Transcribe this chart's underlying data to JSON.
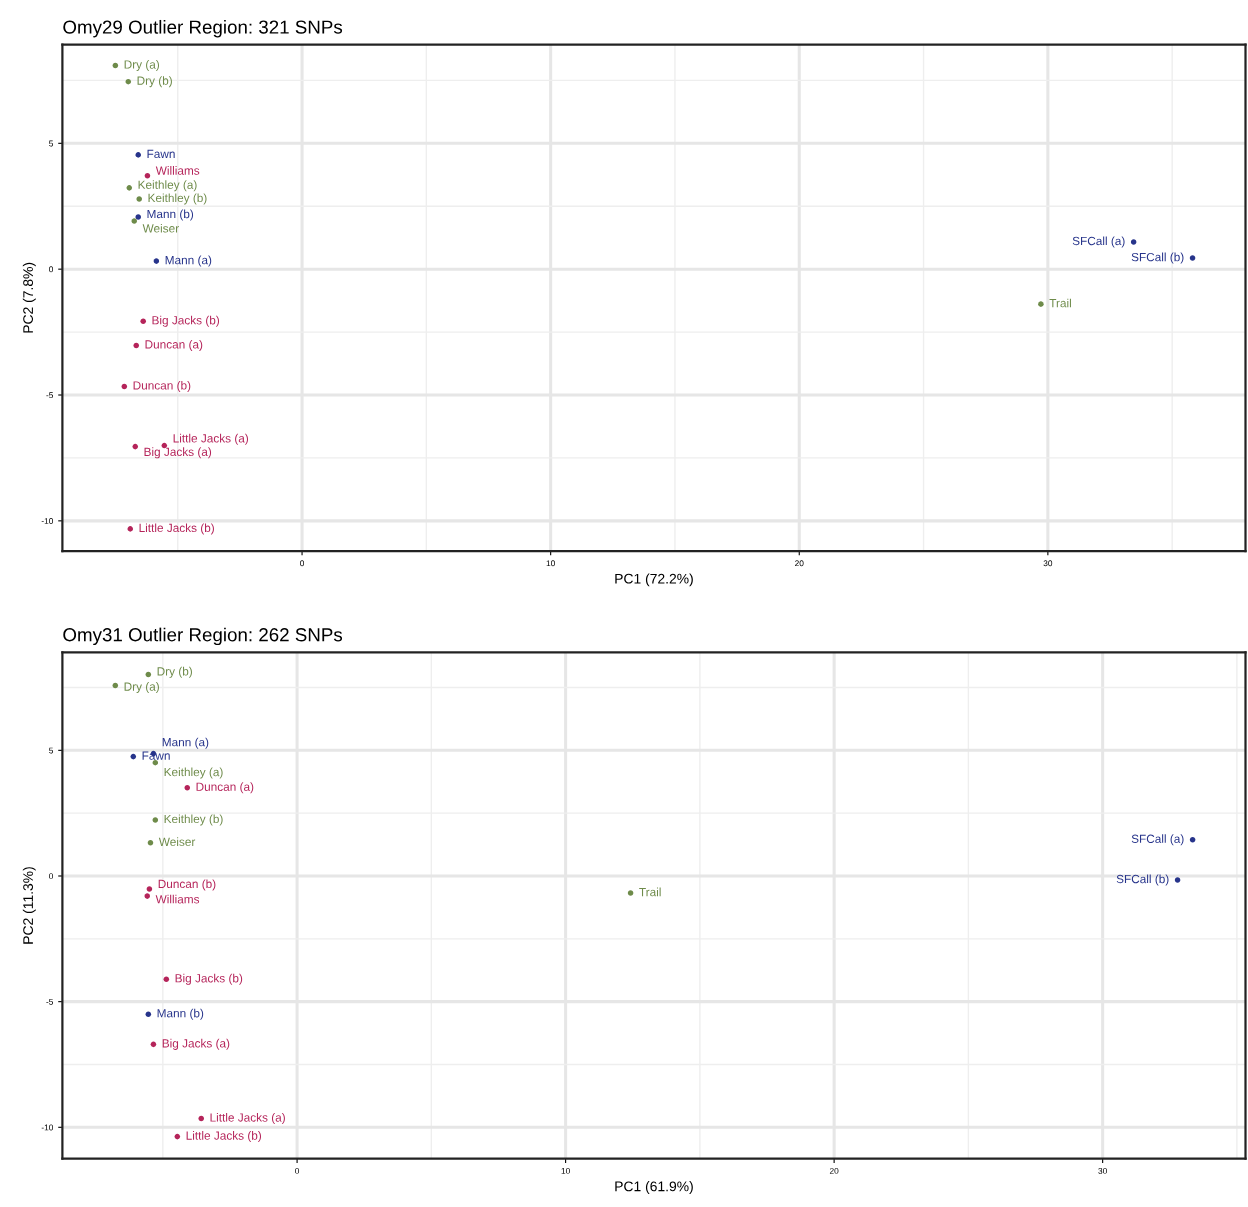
{
  "chart_data": [
    {
      "type": "scatter",
      "title": "Omy29 Outlier Region: 321 SNPs",
      "xlabel": "PC1 (72.2%)",
      "ylabel": "PC2 (7.8%)",
      "x": [
        -7.51,
        -6.99,
        -6.59,
        -6.22,
        -6.95,
        -6.55,
        -6.59,
        -6.75,
        -5.86,
        -6.39,
        -6.67,
        -7.15,
        -5.54,
        -6.71,
        -6.91,
        33.45,
        35.82,
        29.72
      ],
      "values": [
        8.09,
        7.45,
        4.54,
        3.71,
        3.23,
        2.79,
        2.07,
        1.91,
        0.32,
        -2.07,
        -3.03,
        -4.66,
        -7.01,
        -7.05,
        -10.32,
        1.08,
        0.44,
        -1.39
      ],
      "colors": [
        "#6e8b4a",
        "#6e8b4a",
        "#27348b",
        "#b5245a",
        "#6e8b4a",
        "#6e8b4a",
        "#27348b",
        "#6e8b4a",
        "#27348b",
        "#b5245a",
        "#b5245a",
        "#b5245a",
        "#b5245a",
        "#b5245a",
        "#b5245a",
        "#27348b",
        "#27348b",
        "#6e8b4a"
      ],
      "annotations": [
        {
          "text": "Dry (a)",
          "x": -7.51,
          "y": 8.09
        },
        {
          "text": "Dry (b)",
          "x": -6.99,
          "y": 7.45
        },
        {
          "text": "Fawn",
          "x": -6.59,
          "y": 4.54
        },
        {
          "text": "Williams",
          "x": -6.22,
          "y": 3.71
        },
        {
          "text": "Keithley (a)",
          "x": -6.95,
          "y": 3.23
        },
        {
          "text": "Keithley (b)",
          "x": -6.55,
          "y": 2.79
        },
        {
          "text": "Mann (b)",
          "x": -6.59,
          "y": 2.07
        },
        {
          "text": "Weiser",
          "x": -6.75,
          "y": 1.91
        },
        {
          "text": "Mann (a)",
          "x": -5.86,
          "y": 0.32
        },
        {
          "text": "Big Jacks (b)",
          "x": -6.39,
          "y": -2.07
        },
        {
          "text": "Duncan (a)",
          "x": -6.67,
          "y": -3.03
        },
        {
          "text": "Duncan (b)",
          "x": -7.15,
          "y": -4.66
        },
        {
          "text": "Little Jacks (a)",
          "x": -5.54,
          "y": -7.01
        },
        {
          "text": "Big Jacks (a)",
          "x": -6.71,
          "y": -7.05
        },
        {
          "text": "Little Jacks (b)",
          "x": -6.91,
          "y": -10.32
        },
        {
          "text": "SFCall (a)",
          "x": 33.45,
          "y": 1.08
        },
        {
          "text": "SFCall (b)",
          "x": 35.82,
          "y": 0.44
        },
        {
          "text": "Trail",
          "x": 29.72,
          "y": -1.39
        }
      ],
      "xlim": [
        -9.64,
        37.95
      ],
      "ylim": [
        -11.2,
        8.92
      ],
      "xticks": [
        0,
        10,
        20,
        30
      ],
      "yticks": [
        -10,
        -5,
        0,
        5
      ],
      "grid": true,
      "marker": "circle"
    },
    {
      "type": "scatter",
      "title": "Omy31 Outlier Region: 262 SNPs",
      "xlabel": "PC1 (61.9%)",
      "ylabel": "PC2 (11.3%)",
      "x": [
        -5.54,
        -6.77,
        -5.35,
        -6.1,
        -5.28,
        -4.09,
        -5.28,
        -5.46,
        -5.5,
        -5.58,
        12.42,
        33.35,
        32.79,
        -4.87,
        -5.54,
        -5.35,
        -3.57,
        -4.46
      ],
      "values": [
        8.02,
        7.58,
        4.87,
        4.75,
        4.51,
        3.51,
        2.23,
        1.32,
        -0.52,
        -0.8,
        -0.68,
        1.44,
        -0.16,
        -4.11,
        -5.5,
        -6.7,
        -9.65,
        -10.37
      ],
      "colors": [
        "#6e8b4a",
        "#6e8b4a",
        "#27348b",
        "#27348b",
        "#6e8b4a",
        "#b5245a",
        "#6e8b4a",
        "#6e8b4a",
        "#b5245a",
        "#b5245a",
        "#6e8b4a",
        "#27348b",
        "#27348b",
        "#b5245a",
        "#27348b",
        "#b5245a",
        "#b5245a",
        "#b5245a"
      ],
      "annotations": [
        {
          "text": "Dry (b)",
          "x": -5.54,
          "y": 8.02
        },
        {
          "text": "Dry (a)",
          "x": -6.77,
          "y": 7.58
        },
        {
          "text": "Mann (a)",
          "x": -5.35,
          "y": 4.87
        },
        {
          "text": "Fawn",
          "x": -6.1,
          "y": 4.75
        },
        {
          "text": "Keithley (a)",
          "x": -5.28,
          "y": 4.51
        },
        {
          "text": "Duncan (a)",
          "x": -4.09,
          "y": 3.51
        },
        {
          "text": "Keithley (b)",
          "x": -5.28,
          "y": 2.23
        },
        {
          "text": "Weiser",
          "x": -5.46,
          "y": 1.32
        },
        {
          "text": "Duncan (b)",
          "x": -5.5,
          "y": -0.52
        },
        {
          "text": "Williams",
          "x": -5.58,
          "y": -0.8
        },
        {
          "text": "Trail",
          "x": 12.42,
          "y": -0.68
        },
        {
          "text": "SFCall (a)",
          "x": 33.35,
          "y": 1.44
        },
        {
          "text": "SFCall (b)",
          "x": 32.79,
          "y": -0.16
        },
        {
          "text": "Big Jacks (b)",
          "x": -4.87,
          "y": -4.11
        },
        {
          "text": "Mann (b)",
          "x": -5.54,
          "y": -5.5
        },
        {
          "text": "Big Jacks (a)",
          "x": -5.35,
          "y": -6.7
        },
        {
          "text": "Little Jacks (a)",
          "x": -3.57,
          "y": -9.65
        },
        {
          "text": "Little Jacks (b)",
          "x": -4.46,
          "y": -10.37
        }
      ],
      "xlim": [
        -8.74,
        35.32
      ],
      "ylim": [
        -11.25,
        8.9
      ],
      "xticks": [
        0,
        10,
        20,
        30
      ],
      "yticks": [
        -10,
        -5,
        0,
        5
      ],
      "grid": true,
      "marker": "circle"
    }
  ]
}
